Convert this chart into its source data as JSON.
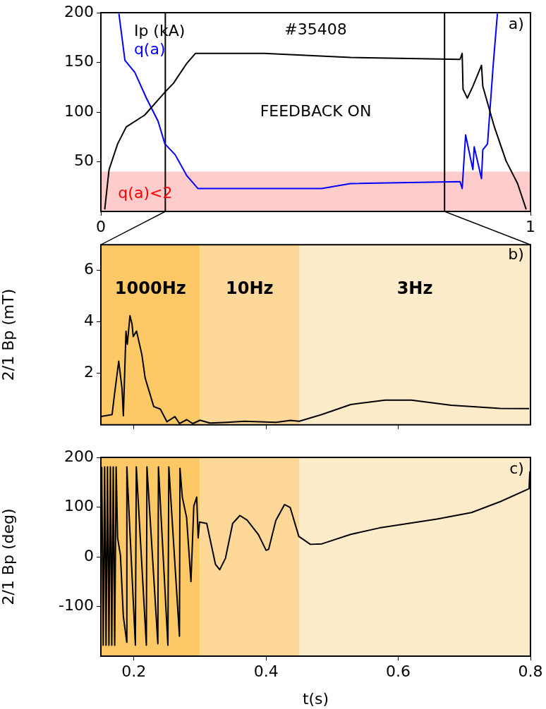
{
  "chart_data": [
    {
      "type": "line",
      "xlim": [
        0,
        1
      ],
      "xticks": [
        0,
        1
      ],
      "ylim": [
        0,
        200
      ],
      "yticks": [
        50,
        100,
        150,
        200
      ],
      "grid": false,
      "legend": false,
      "marker": "none",
      "line_style": "solid",
      "series": [
        {
          "name": "Ip (kA)",
          "color": "#000000",
          "x": [
            0.009,
            0.019,
            0.039,
            0.059,
            0.102,
            0.149,
            0.169,
            0.2,
            0.22,
            0.38,
            0.581,
            0.836,
            0.841,
            0.843,
            0.853,
            0.866,
            0.886,
            0.889,
            0.916,
            0.943,
            0.97,
            0.99
          ],
          "values": [
            2,
            42,
            68,
            85,
            97,
            120,
            129,
            149,
            159,
            159,
            155,
            153,
            159,
            123,
            114,
            126,
            147,
            126,
            85,
            51,
            28,
            2
          ]
        },
        {
          "name": "q(a)",
          "color": "#0000ff",
          "x": [
            0.042,
            0.056,
            0.079,
            0.106,
            0.133,
            0.149,
            0.173,
            0.2,
            0.226,
            0.514,
            0.581,
            0.836,
            0.841,
            0.849,
            0.866,
            0.869,
            0.886,
            0.889,
            0.9,
            0.913,
            0.923
          ],
          "values": [
            199,
            152,
            140,
            114,
            91,
            68,
            57,
            36,
            23,
            23,
            28,
            30,
            23,
            77,
            42,
            65,
            33,
            62,
            68,
            146,
            199
          ]
        }
      ],
      "bands": [
        {
          "axis": "y",
          "from": 0,
          "to": 40,
          "label": "q(a)<2",
          "color": "#ffcccc"
        }
      ],
      "ref_lines": [
        {
          "axis": "x",
          "value": 0.15,
          "color": "#000000"
        },
        {
          "axis": "x",
          "value": 0.8,
          "color": "#000000"
        }
      ],
      "annotations": [
        "#35408",
        "FEEDBACK ON",
        "a)"
      ]
    },
    {
      "type": "line",
      "xlim": [
        0.15,
        0.8
      ],
      "xticks": [
        0.2,
        0.4,
        0.6
      ],
      "ylim": [
        0,
        7
      ],
      "yticks": [
        2,
        4,
        6
      ],
      "tick_labels": "y",
      "ylabel": "2/1 Bp (mT)",
      "grid": false,
      "legend": false,
      "marker": "none",
      "line_style": "solid",
      "series": [
        {
          "color": "#000000",
          "x": [
            0.15,
            0.167,
            0.17,
            0.177,
            0.182,
            0.184,
            0.188,
            0.19,
            0.194,
            0.197,
            0.199,
            0.204,
            0.212,
            0.217,
            0.223,
            0.23,
            0.24,
            0.25,
            0.262,
            0.269,
            0.28,
            0.289,
            0.3,
            0.315,
            0.341,
            0.367,
            0.415,
            0.437,
            0.45,
            0.484,
            0.528,
            0.58,
            0.62,
            0.68,
            0.754,
            0.798
          ],
          "values": [
            0.32,
            0.4,
            1.06,
            2.47,
            1.41,
            0.35,
            3.64,
            3.13,
            4.24,
            3.94,
            3.43,
            3.64,
            2.73,
            1.82,
            1.31,
            0.71,
            0.61,
            0.12,
            0.32,
            0.05,
            0.2,
            0.05,
            0.18,
            0.07,
            0.1,
            0.14,
            0.1,
            0.17,
            0.14,
            0.4,
            0.79,
            0.96,
            0.96,
            0.76,
            0.64,
            0.63
          ]
        }
      ],
      "bands": [
        {
          "axis": "x",
          "from": 0.15,
          "to": 0.3,
          "label": "1000Hz",
          "color": "#fdc967"
        },
        {
          "axis": "x",
          "from": 0.3,
          "to": 0.45,
          "label": "10Hz",
          "color": "#fdd899"
        },
        {
          "axis": "x",
          "from": 0.45,
          "to": 0.8,
          "label": "3Hz",
          "color": "#feebc9"
        }
      ],
      "annotations": [
        "b)"
      ]
    },
    {
      "type": "line",
      "xlim": [
        0.15,
        0.8
      ],
      "xticks": [
        0.2,
        0.4,
        0.6,
        0.8
      ],
      "ylim": [
        -200,
        200
      ],
      "yticks": [
        -100,
        0,
        100,
        200
      ],
      "xlabel": "t(s)",
      "ylabel": "2/1 Bp (deg)",
      "grid": false,
      "legend": false,
      "marker": "none",
      "line_style": "solid",
      "series": [
        {
          "color": "#000000",
          "x": [
            0.1513,
            0.1535,
            0.1557,
            0.1578,
            0.16,
            0.1622,
            0.1644,
            0.1665,
            0.1687,
            0.1709,
            0.1731,
            0.1753,
            0.1796,
            0.184,
            0.1892,
            0.1893,
            0.2022,
            0.2036,
            0.2188,
            0.2197,
            0.2362,
            0.2371,
            0.2514,
            0.2528,
            0.2689,
            0.2697,
            0.2732,
            0.2797,
            0.2863,
            0.2906,
            0.295,
            0.2972,
            0.2993,
            0.3102,
            0.3233,
            0.3298,
            0.3385,
            0.3494,
            0.3603,
            0.3712,
            0.3886,
            0.4,
            0.4038,
            0.4147,
            0.4278,
            0.4365,
            0.4495,
            0.467,
            0.4844,
            0.5279,
            0.5714,
            0.615,
            0.6585,
            0.7108,
            0.7543,
            0.7979,
            0.799
          ],
          "values": [
            181,
            -178,
            181,
            -178,
            181,
            -178,
            181,
            -178,
            181,
            -178,
            181,
            38,
            3,
            -120,
            -172,
            181,
            -178,
            181,
            -178,
            181,
            -175,
            181,
            -178,
            181,
            -160,
            178,
            120,
            79,
            -50,
            102,
            120,
            38,
            70,
            67,
            -15,
            -26,
            -3,
            67,
            83,
            74,
            44,
            13,
            15,
            73,
            105,
            99,
            41,
            25,
            26,
            45,
            58,
            67,
            76,
            89,
            111,
            137,
            172
          ]
        }
      ],
      "bands": [
        {
          "axis": "x",
          "from": 0.15,
          "to": 0.3,
          "color": "#fdc967"
        },
        {
          "axis": "x",
          "from": 0.3,
          "to": 0.45,
          "color": "#fdd899"
        },
        {
          "axis": "x",
          "from": 0.45,
          "to": 0.8,
          "color": "#feebc9"
        }
      ],
      "annotations": [
        "c)"
      ]
    }
  ]
}
